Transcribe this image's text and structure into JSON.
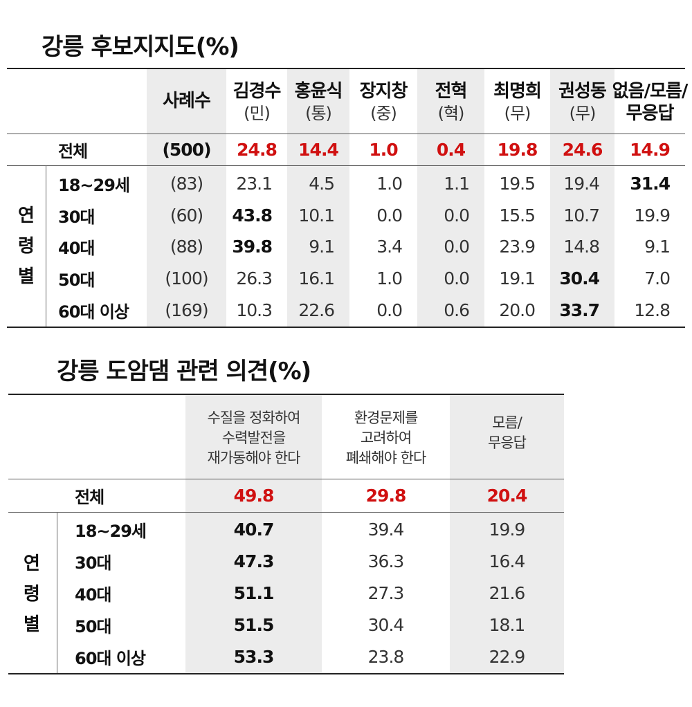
{
  "table1": {
    "title": "강릉 후보지지도(%)",
    "header_sample": "사례수",
    "columns": [
      {
        "name": "김경수",
        "party": "(민)"
      },
      {
        "name": "홍윤식",
        "party": "(통)"
      },
      {
        "name": "장지창",
        "party": "(중)"
      },
      {
        "name": "전혁",
        "party": "(혁)"
      },
      {
        "name": "최명희",
        "party": "(무)"
      },
      {
        "name": "권성동",
        "party": "(무)"
      },
      {
        "name": "없음/모름/",
        "party": "무응답"
      }
    ],
    "group_label": [
      "연",
      "령",
      "별"
    ],
    "total": {
      "label": "전체",
      "sample": "(500)",
      "values": [
        "24.8",
        "14.4",
        "1.0",
        "0.4",
        "19.8",
        "24.6",
        "14.9"
      ]
    },
    "rows": [
      {
        "label": "18~29세",
        "sample": "(83)",
        "values": [
          "23.1",
          "4.5",
          "1.0",
          "1.1",
          "19.5",
          "19.4",
          "31.4"
        ]
      },
      {
        "label": "30대",
        "sample": "(60)",
        "values": [
          "43.8",
          "10.1",
          "0.0",
          "0.0",
          "15.5",
          "10.7",
          "19.9"
        ]
      },
      {
        "label": "40대",
        "sample": "(88)",
        "values": [
          "39.8",
          "9.1",
          "3.4",
          "0.0",
          "23.9",
          "14.8",
          "9.1"
        ]
      },
      {
        "label": "50대",
        "sample": "(100)",
        "values": [
          "26.3",
          "16.1",
          "1.0",
          "0.0",
          "19.1",
          "30.4",
          "7.0"
        ]
      },
      {
        "label": "60대 이상",
        "sample": "(169)",
        "values": [
          "10.3",
          "22.6",
          "0.0",
          "0.6",
          "20.0",
          "33.7",
          "12.8"
        ]
      }
    ]
  },
  "table2": {
    "title": "강릉 도암댐 관련 의견(%)",
    "columns": [
      [
        "수질을 정화하여",
        "수력발전을",
        "재가동해야 한다"
      ],
      [
        "환경문제를",
        "고려하여",
        "폐쇄해야 한다"
      ],
      [
        "모름/",
        "무응답"
      ]
    ],
    "group_label": [
      "연",
      "령",
      "별"
    ],
    "total": {
      "label": "전체",
      "values": [
        "49.8",
        "29.8",
        "20.4"
      ]
    },
    "rows": [
      {
        "label": "18~29세",
        "values": [
          "40.7",
          "39.4",
          "19.9"
        ]
      },
      {
        "label": "30대",
        "values": [
          "47.3",
          "36.3",
          "16.4"
        ]
      },
      {
        "label": "40대",
        "values": [
          "51.1",
          "27.3",
          "21.6"
        ]
      },
      {
        "label": "50대",
        "values": [
          "51.5",
          "30.4",
          "18.1"
        ]
      },
      {
        "label": "60대 이상",
        "values": [
          "53.3",
          "23.8",
          "22.9"
        ]
      }
    ]
  },
  "colors": {
    "highlight": "#d01010",
    "shade": "#ececec",
    "text": "#222222"
  }
}
